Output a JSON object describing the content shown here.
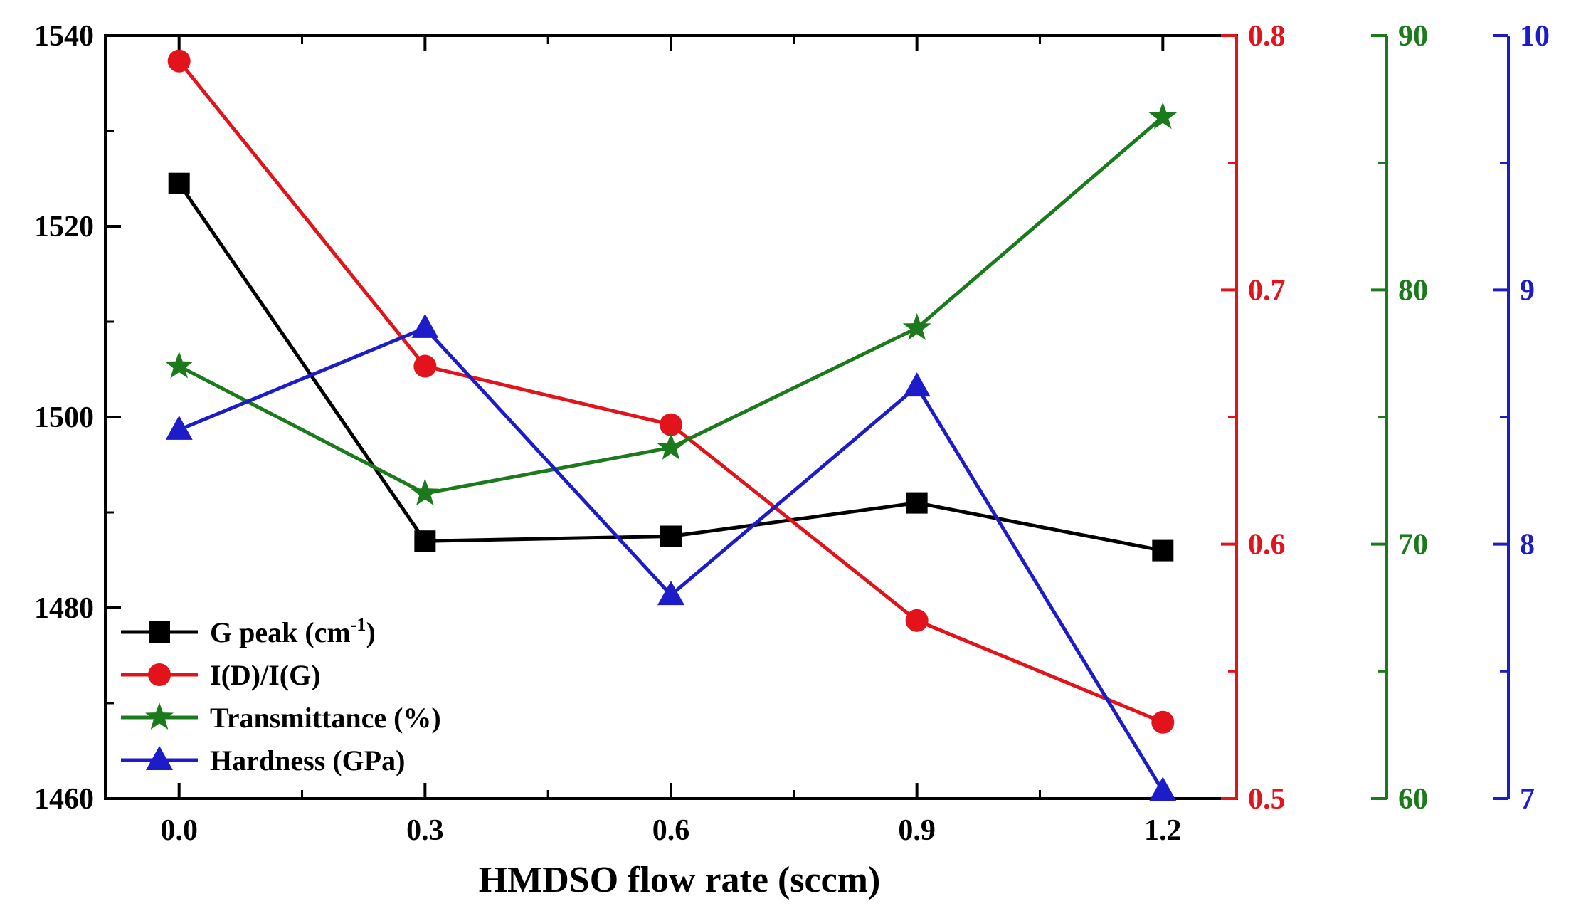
{
  "chart_data": {
    "type": "line",
    "xlabel": "HMDSO flow rate (sccm)",
    "x": [
      0.0,
      0.3,
      0.6,
      0.9,
      1.2
    ],
    "x_tick_labels": [
      "0.0",
      "0.3",
      "0.6",
      "0.9",
      "1.2"
    ],
    "xlim": [
      -0.09,
      1.29
    ],
    "axes": [
      {
        "id": "g",
        "color": "#000000",
        "ylim": [
          1460,
          1540
        ],
        "ticks": [
          1460,
          1480,
          1500,
          1520,
          1540
        ],
        "tick_labels": [
          "1460",
          "1480",
          "1500",
          "1520",
          "1540"
        ]
      },
      {
        "id": "r",
        "color": "#e3131b",
        "ylim": [
          0.5,
          0.8
        ],
        "ticks": [
          0.5,
          0.6,
          0.7,
          0.8
        ],
        "tick_labels": [
          "0.5",
          "0.6",
          "0.7",
          "0.8"
        ]
      },
      {
        "id": "t",
        "color": "#1b7a1b",
        "ylim": [
          60,
          90
        ],
        "ticks": [
          60,
          70,
          80,
          90
        ],
        "tick_labels": [
          "60",
          "70",
          "80",
          "90"
        ]
      },
      {
        "id": "h",
        "color": "#1c1cc8",
        "ylim": [
          7,
          10
        ],
        "ticks": [
          7,
          8,
          9,
          10
        ],
        "tick_labels": [
          "7",
          "8",
          "9",
          "10"
        ]
      }
    ],
    "series": [
      {
        "name": "G peak (cm",
        "superscript": "-1",
        "name_suffix": ")",
        "axis": "g",
        "marker": "square",
        "color": "#000000",
        "values": [
          1524.5,
          1487.0,
          1487.5,
          1491.0,
          1486.0
        ]
      },
      {
        "name": "I(D)/I(G)",
        "axis": "r",
        "marker": "circle",
        "color": "#e3131b",
        "values": [
          0.79,
          0.67,
          0.647,
          0.57,
          0.53
        ]
      },
      {
        "name": "Transmittance (%)",
        "axis": "t",
        "marker": "star",
        "color": "#1b7a1b",
        "values": [
          77.0,
          72.0,
          73.8,
          78.5,
          86.8
        ]
      },
      {
        "name": "Hardness (GPa)",
        "axis": "h",
        "marker": "triangle",
        "color": "#1c1cc8",
        "values": [
          8.45,
          8.85,
          7.8,
          8.62,
          7.03
        ]
      }
    ]
  }
}
